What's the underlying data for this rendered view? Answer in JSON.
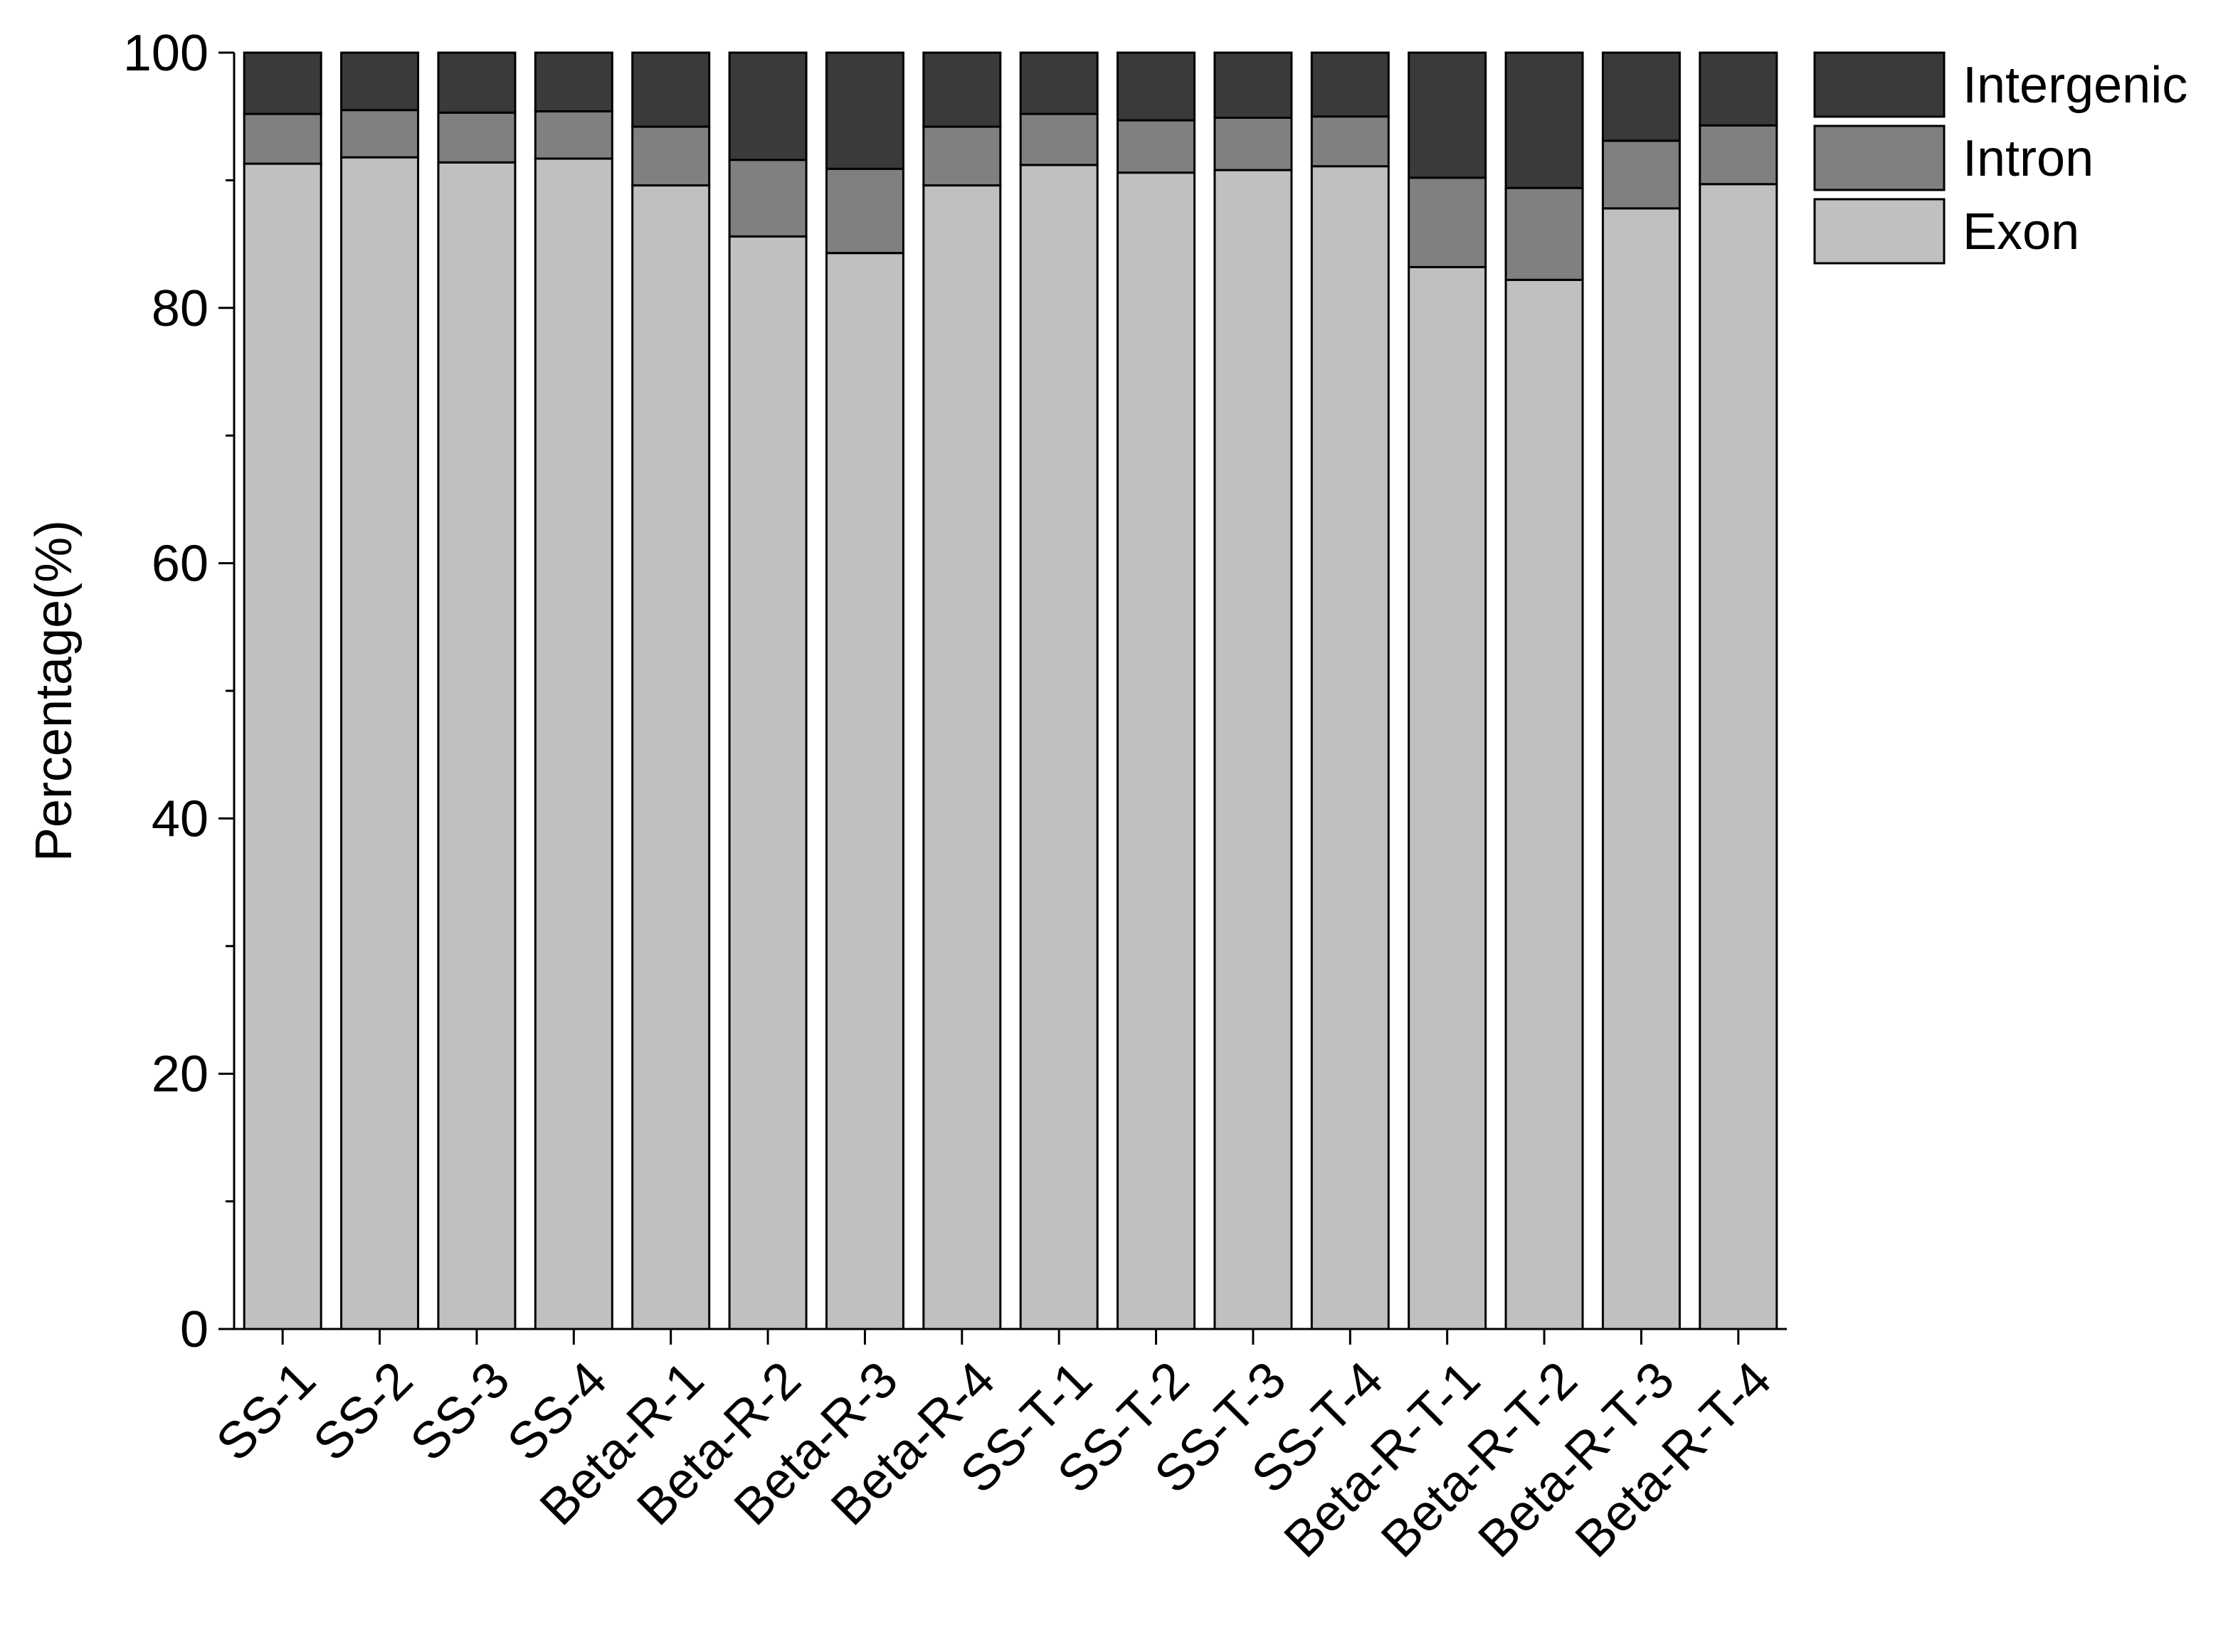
{
  "chart_data": {
    "type": "stacked_bar",
    "y_label": "Percentage(%)",
    "categories": [
      "SS-1",
      "SS-2",
      "SS-3",
      "SS-4",
      "Beta-R-1",
      "Beta-R-2",
      "Beta-R-3",
      "Beta-R-4",
      "SS-T-1",
      "SS-T-2",
      "SS-T-3",
      "SS-T-4",
      "Beta-R-T-1",
      "Beta-R-T-2",
      "Beta-R-T-3",
      "Beta-R-T-4"
    ],
    "series": [
      {
        "name": "Exon",
        "color": "#c0c0c0",
        "values": [
          91.3,
          91.8,
          91.4,
          91.7,
          89.6,
          85.6,
          84.3,
          89.6,
          91.2,
          90.6,
          90.8,
          91.1,
          83.2,
          82.2,
          87.8,
          89.7
        ]
      },
      {
        "name": "Intron",
        "color": "#808080",
        "values": [
          3.9,
          3.7,
          3.9,
          3.7,
          4.6,
          6.0,
          6.6,
          4.6,
          4.0,
          4.1,
          4.1,
          3.9,
          7.0,
          7.2,
          5.3,
          4.6
        ]
      },
      {
        "name": "Intergenic",
        "color": "#3a3a3a",
        "values": [
          4.8,
          4.5,
          4.7,
          4.6,
          5.8,
          8.4,
          9.1,
          5.8,
          4.8,
          5.3,
          5.1,
          5.0,
          9.8,
          10.6,
          6.9,
          5.7
        ]
      }
    ],
    "ylim": [
      0,
      100
    ],
    "yticks": [
      0,
      20,
      40,
      60,
      80,
      100
    ],
    "legend": "outside-right"
  }
}
